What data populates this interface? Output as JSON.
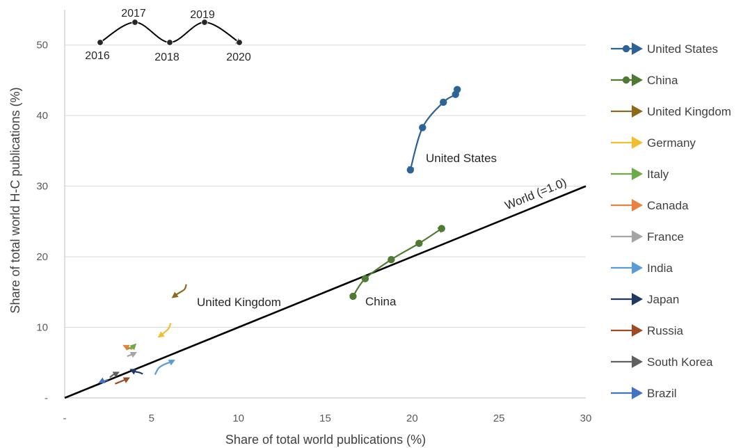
{
  "chart_data": {
    "type": "line",
    "xlabel": "Share of total world publications (%)",
    "ylabel": "Share of total world H-C publications (%)",
    "xlim": [
      0,
      30
    ],
    "ylim": [
      0,
      55
    ],
    "x_ticks": [
      "-",
      "5",
      "10",
      "15",
      "20",
      "25",
      "30"
    ],
    "y_ticks": [
      "-",
      "10",
      "20",
      "30",
      "40",
      "50"
    ],
    "grid": "horizontal",
    "legend_placement": "right",
    "reference_line": {
      "label": "World (=1.0)",
      "x": [
        0,
        30
      ],
      "y": [
        0,
        30
      ],
      "color": "#000000"
    },
    "year_key": {
      "years": [
        "2016",
        "2017",
        "2018",
        "2019",
        "2020"
      ]
    },
    "series": [
      {
        "name": "United States",
        "color": "#2E6495",
        "markers": true,
        "annotation": "United States",
        "points": [
          [
            22.6,
            43.7
          ],
          [
            22.5,
            43.0
          ],
          [
            21.8,
            41.9
          ],
          [
            20.6,
            38.3
          ],
          [
            19.9,
            32.3
          ]
        ]
      },
      {
        "name": "China",
        "color": "#4E7A33",
        "markers": true,
        "annotation": "China",
        "points": [
          [
            16.6,
            14.4
          ],
          [
            17.3,
            16.9
          ],
          [
            18.8,
            19.6
          ],
          [
            20.4,
            21.9
          ],
          [
            21.7,
            24.0
          ]
        ]
      },
      {
        "name": "United Kingdom",
        "color": "#8C6A1C",
        "markers": false,
        "annotation": "United Kingdom",
        "points": [
          [
            7.0,
            16.1
          ],
          [
            6.9,
            15.4
          ],
          [
            6.6,
            14.9
          ],
          [
            6.4,
            14.6
          ],
          [
            6.3,
            14.4
          ]
        ]
      },
      {
        "name": "Germany",
        "color": "#F2BE2F",
        "markers": false,
        "points": [
          [
            6.1,
            10.6
          ],
          [
            6.0,
            9.9
          ],
          [
            5.8,
            9.4
          ],
          [
            5.6,
            9.0
          ],
          [
            5.5,
            8.8
          ]
        ]
      },
      {
        "name": "Italy",
        "color": "#6CAB45",
        "markers": false,
        "points": [
          [
            3.6,
            6.9
          ],
          [
            3.7,
            7.0
          ],
          [
            3.8,
            7.1
          ],
          [
            3.9,
            7.2
          ],
          [
            4.0,
            7.4
          ]
        ]
      },
      {
        "name": "Canada",
        "color": "#E9823F",
        "markers": false,
        "points": [
          [
            3.9,
            6.9
          ],
          [
            3.8,
            7.0
          ],
          [
            3.7,
            7.1
          ],
          [
            3.6,
            7.2
          ],
          [
            3.5,
            7.3
          ]
        ]
      },
      {
        "name": "France",
        "color": "#A5A5A5",
        "markers": false,
        "points": [
          [
            3.6,
            5.9
          ],
          [
            3.7,
            6.0
          ],
          [
            3.8,
            6.1
          ],
          [
            3.9,
            6.2
          ],
          [
            4.0,
            6.3
          ]
        ]
      },
      {
        "name": "India",
        "color": "#5B9BD5",
        "markers": false,
        "points": [
          [
            5.2,
            3.3
          ],
          [
            5.4,
            4.2
          ],
          [
            5.7,
            4.7
          ],
          [
            6.0,
            5.0
          ],
          [
            6.2,
            5.2
          ]
        ]
      },
      {
        "name": "Japan",
        "color": "#1F3864",
        "markers": false,
        "points": [
          [
            4.5,
            3.4
          ],
          [
            4.3,
            3.6
          ],
          [
            4.1,
            3.7
          ],
          [
            4.0,
            3.8
          ],
          [
            3.9,
            3.9
          ]
        ]
      },
      {
        "name": "Russia",
        "color": "#9E4A22",
        "markers": false,
        "points": [
          [
            2.9,
            2.0
          ],
          [
            3.1,
            2.2
          ],
          [
            3.3,
            2.4
          ],
          [
            3.5,
            2.6
          ],
          [
            3.6,
            2.7
          ]
        ]
      },
      {
        "name": "South Korea",
        "color": "#606060",
        "markers": false,
        "points": [
          [
            2.6,
            2.9
          ],
          [
            2.7,
            3.1
          ],
          [
            2.8,
            3.3
          ],
          [
            2.9,
            3.4
          ],
          [
            3.0,
            3.5
          ]
        ]
      },
      {
        "name": "Brazil",
        "color": "#4472C4",
        "markers": false,
        "points": [
          [
            2.5,
            2.6
          ],
          [
            2.4,
            2.5
          ],
          [
            2.3,
            2.4
          ],
          [
            2.2,
            2.4
          ],
          [
            2.1,
            2.3
          ]
        ]
      }
    ]
  }
}
